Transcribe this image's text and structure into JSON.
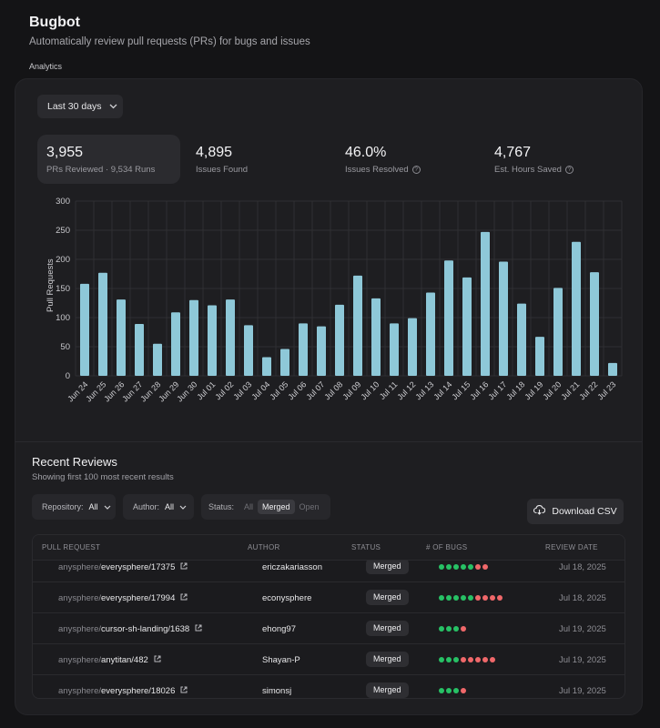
{
  "header": {
    "title": "Bugbot",
    "subtitle": "Automatically review pull requests (PRs) for bugs and issues",
    "section": "Analytics"
  },
  "range_button": {
    "label": "Last 30 days"
  },
  "stats": [
    {
      "value": "3,955",
      "label": "PRs Reviewed · 9,534 Runs",
      "info": false
    },
    {
      "value": "4,895",
      "label": "Issues Found",
      "info": false
    },
    {
      "value": "46.0%",
      "label": "Issues Resolved",
      "info": true
    },
    {
      "value": "4,767",
      "label": "Est. Hours Saved",
      "info": true
    }
  ],
  "colors": {
    "bar": "#8ec8d8",
    "green": "#27c165",
    "red": "#f0686a"
  },
  "chart_data": {
    "type": "bar",
    "ylabel": "Pull Requests",
    "ylim": [
      0,
      300
    ],
    "yticks": [
      0,
      50,
      100,
      150,
      200,
      250,
      300
    ],
    "grid": true,
    "categories": [
      "Jun 24",
      "Jun 25",
      "Jun 26",
      "Jun 27",
      "Jun 28",
      "Jun 29",
      "Jun 30",
      "Jul 01",
      "Jul 02",
      "Jul 03",
      "Jul 04",
      "Jul 05",
      "Jul 06",
      "Jul 07",
      "Jul 08",
      "Jul 09",
      "Jul 10",
      "Jul 11",
      "Jul 12",
      "Jul 13",
      "Jul 14",
      "Jul 15",
      "Jul 16",
      "Jul 17",
      "Jul 18",
      "Jul 19",
      "Jul 20",
      "Jul 21",
      "Jul 22",
      "Jul 23"
    ],
    "values": [
      158,
      177,
      131,
      89,
      55,
      109,
      130,
      121,
      131,
      87,
      32,
      46,
      90,
      85,
      122,
      172,
      133,
      90,
      99,
      143,
      198,
      169,
      247,
      196,
      124,
      67,
      151,
      230,
      178,
      22
    ]
  },
  "recent": {
    "title": "Recent Reviews",
    "subtitle": "Showing first 100 most recent results",
    "filters": {
      "repository": {
        "label": "Repository:",
        "value": "All"
      },
      "author": {
        "label": "Author:",
        "value": "All"
      },
      "status": {
        "label": "Status:",
        "options": [
          "All",
          "Merged",
          "Open"
        ],
        "selected": "Merged"
      }
    },
    "download_label": "Download CSV",
    "columns": [
      "PULL REQUEST",
      "AUTHOR",
      "STATUS",
      "# OF BUGS",
      "REVIEW DATE"
    ],
    "rows": [
      {
        "org": "anysphere/",
        "repo": "everysphere/17375",
        "author": "ericzakariasson",
        "status": "Merged",
        "green": 5,
        "red": 2,
        "date": "Jul 18, 2025"
      },
      {
        "org": "anysphere/",
        "repo": "everysphere/17994",
        "author": "econysphere",
        "status": "Merged",
        "green": 5,
        "red": 4,
        "date": "Jul 18, 2025"
      },
      {
        "org": "anysphere/",
        "repo": "cursor-sh-landing/1638",
        "author": "ehong97",
        "status": "Merged",
        "green": 3,
        "red": 1,
        "date": "Jul 19, 2025"
      },
      {
        "org": "anysphere/",
        "repo": "anytitan/482",
        "author": "Shayan-P",
        "status": "Merged",
        "green": 3,
        "red": 5,
        "date": "Jul 19, 2025"
      },
      {
        "org": "anysphere/",
        "repo": "everysphere/18026",
        "author": "simonsj",
        "status": "Merged",
        "green": 3,
        "red": 1,
        "date": "Jul 19, 2025"
      }
    ]
  }
}
